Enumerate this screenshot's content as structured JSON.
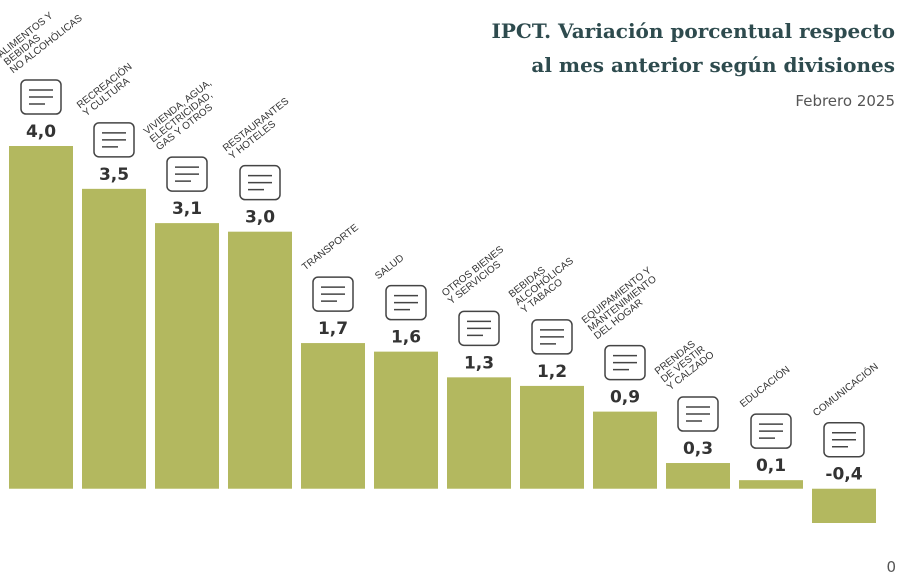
{
  "chart_data": {
    "type": "bar",
    "title_lines": [
      "IPCT. Variación porcentual respecto",
      "al mes anterior según divisiones"
    ],
    "subtitle": "Febrero 2025",
    "categories": [
      "ALIMENTOS Y\nBEBIDAS\nNO ALCOHÓLICAS",
      "RECREACIÓN\nY CULTURA",
      "VIVIENDA, AGUA,\nELECTRICIDAD,\nGAS Y OTROS",
      "RESTAURANTES\nY HOTELES",
      "TRANSPORTE",
      "SALUD",
      "OTROS BIENES\nY SERVICIOS",
      "BEBIDAS\nALCOHÓLICAS\nY TABACO",
      "EQUIPAMIENTO Y\nMANTENIMIENTO\nDEL HOGAR",
      "PRENDAS\nDE VESTIR\nY CALZADO",
      "EDUCACIÓN",
      "COMUNICACIÓN"
    ],
    "values": [
      4.0,
      3.5,
      3.1,
      3.0,
      1.7,
      1.6,
      1.3,
      1.2,
      0.9,
      0.3,
      0.1,
      -0.4
    ],
    "value_labels": [
      "4,0",
      "3,5",
      "3,1",
      "3,0",
      "1,7",
      "1,6",
      "1,3",
      "1,2",
      "0,9",
      "0,3",
      "0,1",
      "-0,4"
    ],
    "color": "#b3b85f",
    "ylim": [
      -0.4,
      4.0
    ],
    "corner_text": "0"
  }
}
